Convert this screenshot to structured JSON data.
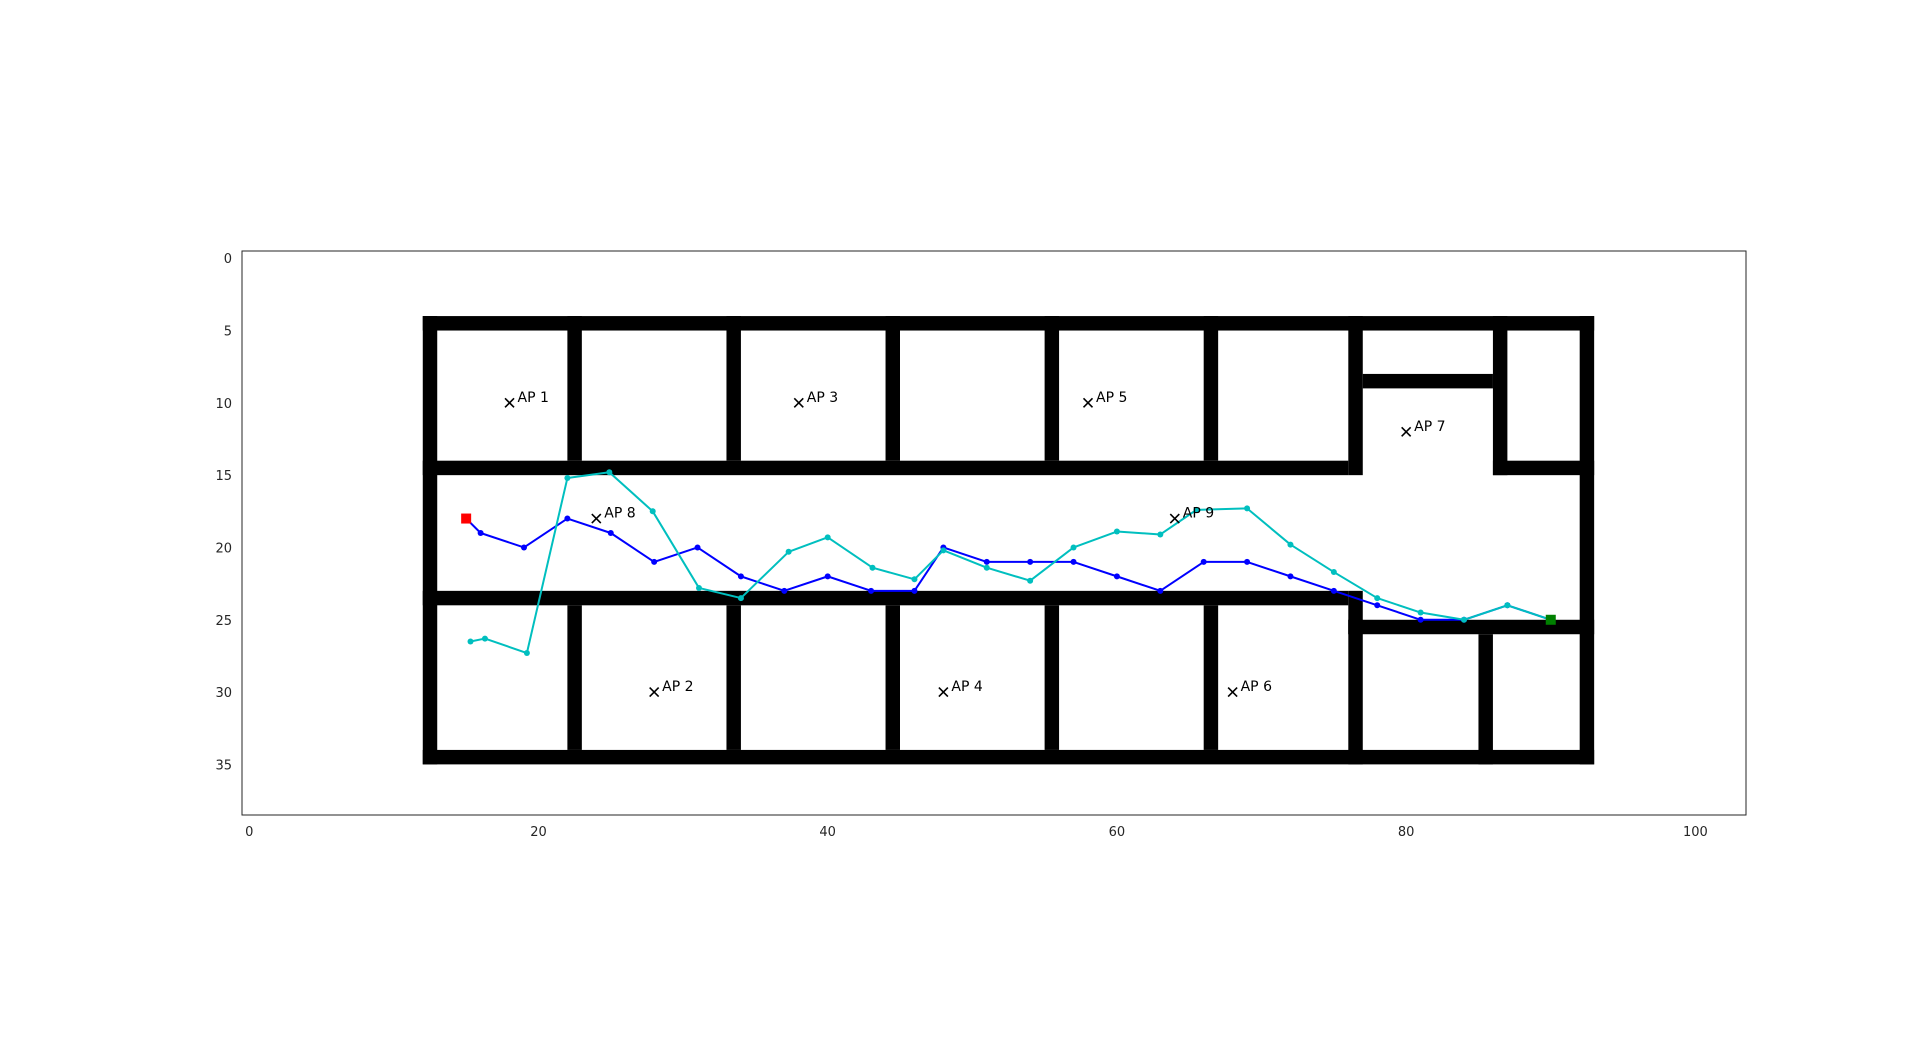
{
  "chart_data": {
    "type": "line",
    "xlim": [
      -0.5,
      103.5
    ],
    "ylim": [
      38.5,
      -0.5
    ],
    "x_ticks": [
      0,
      20,
      40,
      60,
      80,
      100
    ],
    "y_ticks": [
      0,
      5,
      10,
      15,
      20,
      25,
      30,
      35
    ],
    "grid": false,
    "walls": [
      [
        12,
        4,
        93,
        5
      ],
      [
        12,
        34,
        93,
        35
      ],
      [
        12,
        4,
        13,
        35
      ],
      [
        92,
        4,
        93,
        35
      ],
      [
        12,
        14,
        76,
        15
      ],
      [
        86,
        14,
        93,
        15
      ],
      [
        12,
        23,
        76,
        24
      ],
      [
        76,
        25,
        93,
        26
      ],
      [
        76,
        23,
        77,
        26
      ],
      [
        76,
        4,
        77,
        15
      ],
      [
        76,
        25,
        77,
        35
      ],
      [
        77,
        8,
        86,
        9
      ],
      [
        86,
        4,
        87,
        15
      ],
      [
        85,
        26,
        86,
        35
      ],
      [
        22,
        4,
        23,
        14
      ],
      [
        33,
        4,
        34,
        14
      ],
      [
        44,
        4,
        45,
        14
      ],
      [
        55,
        4,
        56,
        14
      ],
      [
        66,
        4,
        67,
        14
      ],
      [
        22,
        24,
        23,
        34
      ],
      [
        33,
        24,
        34,
        34
      ],
      [
        44,
        24,
        45,
        34
      ],
      [
        55,
        24,
        56,
        34
      ],
      [
        66,
        24,
        67,
        34
      ]
    ],
    "access_points": [
      {
        "label": "AP 1",
        "x": 18,
        "y": 10
      },
      {
        "label": "AP 2",
        "x": 28,
        "y": 30
      },
      {
        "label": "AP 3",
        "x": 38,
        "y": 10
      },
      {
        "label": "AP 4",
        "x": 48,
        "y": 30
      },
      {
        "label": "AP 5",
        "x": 58,
        "y": 10
      },
      {
        "label": "AP 6",
        "x": 68,
        "y": 30
      },
      {
        "label": "AP 7",
        "x": 80,
        "y": 12
      },
      {
        "label": "AP 8",
        "x": 24,
        "y": 18
      },
      {
        "label": "AP 9",
        "x": 64,
        "y": 18
      }
    ],
    "series": [
      {
        "color": "#0000ff",
        "x": [
          15,
          16,
          19,
          22,
          25,
          28,
          31,
          34,
          37,
          40,
          43,
          46,
          48,
          51,
          54,
          57,
          60,
          63,
          66,
          69,
          72,
          75,
          78,
          81,
          84,
          87,
          90
        ],
        "y": [
          18,
          19,
          20,
          18,
          19,
          21,
          20,
          22,
          23,
          22,
          23,
          23,
          20,
          21,
          21,
          21,
          22,
          23,
          21,
          21,
          22,
          23,
          24,
          25,
          25,
          24,
          25
        ]
      },
      {
        "color": "#00bfbf",
        "x": [
          15.3,
          16.3,
          19.2,
          22,
          24.9,
          27.9,
          31.1,
          34,
          37.3,
          40,
          43.1,
          46,
          48,
          51,
          54,
          57,
          60,
          63,
          65.5,
          69,
          72,
          75,
          78,
          81,
          84,
          87,
          90
        ],
        "y": [
          26.5,
          26.3,
          27.3,
          15.2,
          14.8,
          17.5,
          22.8,
          23.5,
          20.3,
          19.3,
          21.4,
          22.2,
          20.2,
          21.4,
          22.3,
          20,
          18.9,
          19.1,
          17.4,
          17.3,
          19.8,
          21.7,
          23.5,
          24.5,
          25,
          24,
          25
        ]
      }
    ],
    "start_marker": {
      "x": 15,
      "y": 18,
      "color": "#ff0000"
    },
    "end_marker": {
      "x": 90,
      "y": 25,
      "color": "#008000"
    }
  }
}
